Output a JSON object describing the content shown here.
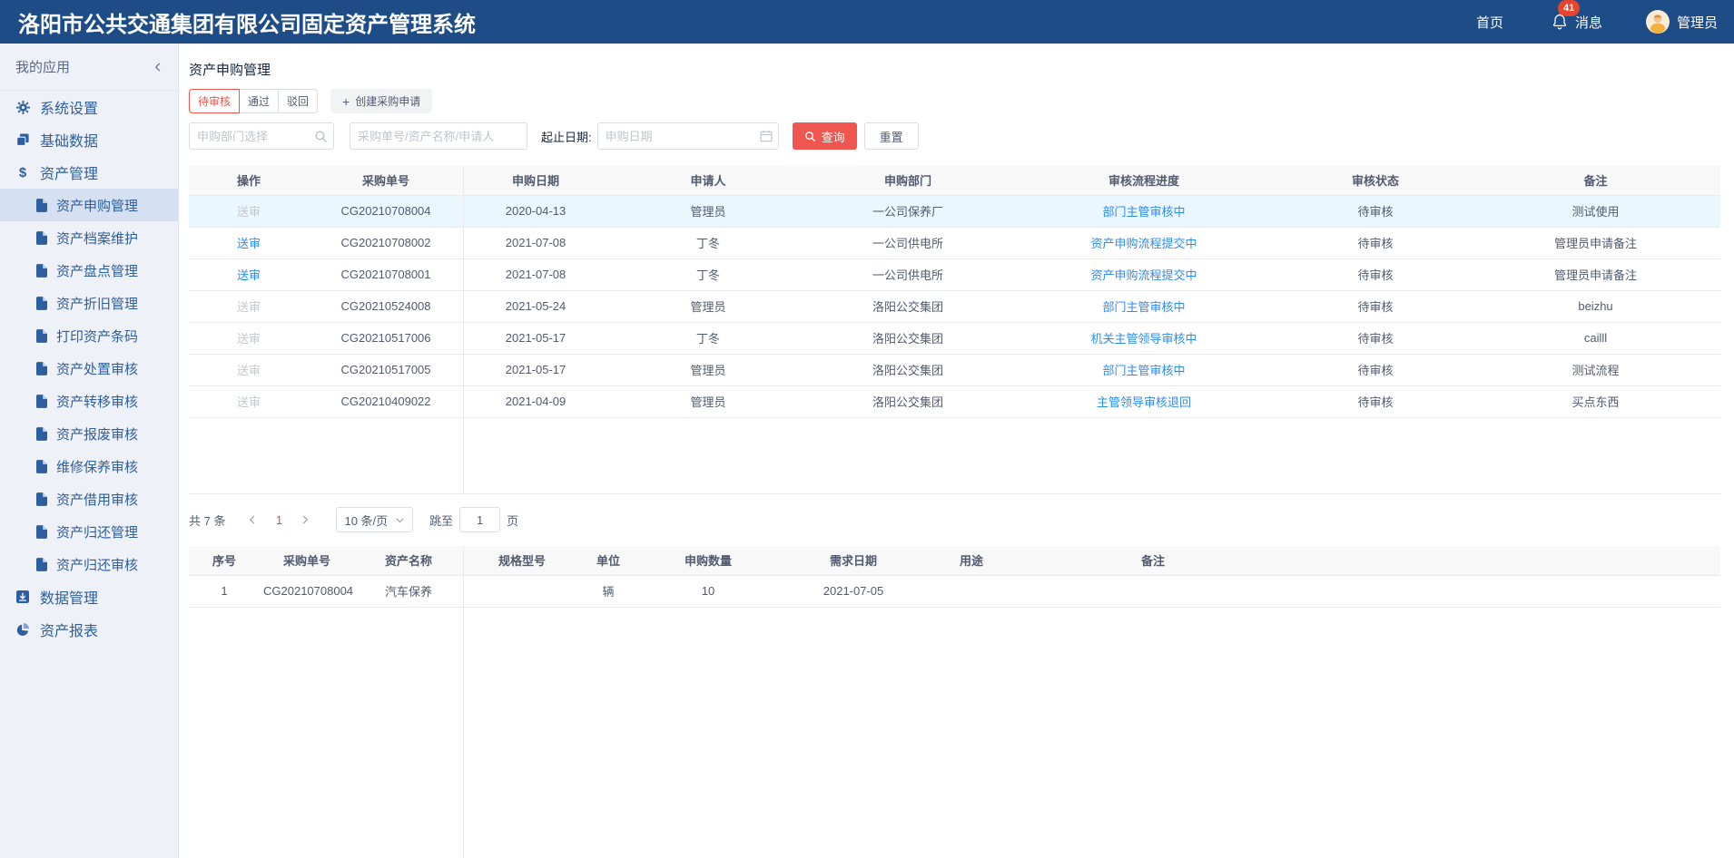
{
  "header": {
    "title": "洛阳市公共交通集团有限公司固定资产管理系统",
    "home": "首页",
    "badge": "41",
    "messages": "消息",
    "user": "管理员"
  },
  "sidebar": {
    "title": "我的应用",
    "items": [
      {
        "id": "system-settings",
        "label": "系统设置",
        "icon": "gear-icon",
        "level": 1,
        "active": false
      },
      {
        "id": "base-data",
        "label": "基础数据",
        "icon": "copy-icon",
        "level": 1,
        "active": false
      },
      {
        "id": "asset-management",
        "label": "资产管理",
        "icon": "dollar-icon",
        "level": 1,
        "active": false
      },
      {
        "id": "asset-purchase",
        "label": "资产申购管理",
        "icon": "file-icon",
        "level": 2,
        "active": true
      },
      {
        "id": "asset-archive",
        "label": "资产档案维护",
        "icon": "file-icon",
        "level": 2,
        "active": false
      },
      {
        "id": "asset-inventory",
        "label": "资产盘点管理",
        "icon": "file-icon",
        "level": 2,
        "active": false
      },
      {
        "id": "asset-depreciation",
        "label": "资产折旧管理",
        "icon": "file-icon",
        "level": 2,
        "active": false
      },
      {
        "id": "print-asset-barcode",
        "label": "打印资产条码",
        "icon": "file-icon",
        "level": 2,
        "active": false
      },
      {
        "id": "asset-disposal-audit",
        "label": "资产处置审核",
        "icon": "file-icon",
        "level": 2,
        "active": false
      },
      {
        "id": "asset-transfer-audit",
        "label": "资产转移审核",
        "icon": "file-icon",
        "level": 2,
        "active": false
      },
      {
        "id": "asset-scrap-audit",
        "label": "资产报废审核",
        "icon": "file-icon",
        "level": 2,
        "active": false
      },
      {
        "id": "maintenance-audit",
        "label": "维修保养审核",
        "icon": "file-icon",
        "level": 2,
        "active": false
      },
      {
        "id": "asset-borrow-audit",
        "label": "资产借用审核",
        "icon": "file-icon",
        "level": 2,
        "active": false
      },
      {
        "id": "asset-return-mgmt",
        "label": "资产归还管理",
        "icon": "file-icon",
        "level": 2,
        "active": false
      },
      {
        "id": "asset-return-audit",
        "label": "资产归还审核",
        "icon": "file-icon",
        "level": 2,
        "active": false
      },
      {
        "id": "data-management",
        "label": "数据管理",
        "icon": "databox-icon",
        "level": 1,
        "active": false
      },
      {
        "id": "asset-report",
        "label": "资产报表",
        "icon": "pie-icon",
        "level": 1,
        "active": false
      }
    ]
  },
  "main": {
    "page_title": "资产申购管理",
    "tabs": [
      {
        "id": "pending",
        "label": "待审核",
        "active": true
      },
      {
        "id": "approved",
        "label": "通过",
        "active": false
      },
      {
        "id": "rejected",
        "label": "驳回",
        "active": false
      }
    ],
    "create_button": "创建采购申请",
    "filters": {
      "dept_placeholder": "申购部门选择",
      "keyword_placeholder": "采购单号/资产名称/申请人",
      "date_label": "起止日期:",
      "date_placeholder": "申购日期",
      "query": "查询",
      "reset": "重置"
    },
    "orders_table": {
      "columns": [
        "操作",
        "采购单号",
        "申购日期",
        "申请人",
        "申购部门",
        "审核流程进度",
        "审核状态",
        "备注"
      ],
      "action_label": "送审",
      "rows": [
        {
          "order_no": "CG20210708004",
          "date": "2020-04-13",
          "applicant": "管理员",
          "dept": "一公司保养厂",
          "progress": "部门主管审核中",
          "status": "待审核",
          "remark": "测试使用",
          "action_enabled": false,
          "selected": true
        },
        {
          "order_no": "CG20210708002",
          "date": "2021-07-08",
          "applicant": "丁冬",
          "dept": "一公司供电所",
          "progress": "资产申购流程提交中",
          "status": "待审核",
          "remark": "管理员申请备注",
          "action_enabled": true,
          "selected": false
        },
        {
          "order_no": "CG20210708001",
          "date": "2021-07-08",
          "applicant": "丁冬",
          "dept": "一公司供电所",
          "progress": "资产申购流程提交中",
          "status": "待审核",
          "remark": "管理员申请备注",
          "action_enabled": true,
          "selected": false
        },
        {
          "order_no": "CG20210524008",
          "date": "2021-05-24",
          "applicant": "管理员",
          "dept": "洛阳公交集团",
          "progress": "部门主管审核中",
          "status": "待审核",
          "remark": "beizhu",
          "action_enabled": false,
          "selected": false
        },
        {
          "order_no": "CG20210517006",
          "date": "2021-05-17",
          "applicant": "丁冬",
          "dept": "洛阳公交集团",
          "progress": "机关主管领导审核中",
          "status": "待审核",
          "remark": "cailll",
          "action_enabled": false,
          "selected": false
        },
        {
          "order_no": "CG20210517005",
          "date": "2021-05-17",
          "applicant": "管理员",
          "dept": "洛阳公交集团",
          "progress": "部门主管审核中",
          "status": "待审核",
          "remark": "测试流程",
          "action_enabled": false,
          "selected": false
        },
        {
          "order_no": "CG20210409022",
          "date": "2021-04-09",
          "applicant": "管理员",
          "dept": "洛阳公交集团",
          "progress": "主管领导审核退回",
          "status": "待审核",
          "remark": "买点东西",
          "action_enabled": false,
          "selected": false
        }
      ]
    },
    "pagination": {
      "total": "共 7 条",
      "current_page": "1",
      "page_size": "10 条/页",
      "jump_label": "跳至",
      "jump_value": "1",
      "jump_suffix": "页"
    },
    "detail_table": {
      "columns": [
        "序号",
        "采购单号",
        "资产名称",
        "规格型号",
        "单位",
        "申购数量",
        "需求日期",
        "用途",
        "备注"
      ],
      "rows": [
        {
          "seq": "1",
          "order_no": "CG20210708004",
          "asset_name": "汽车保养",
          "spec": "",
          "unit": "辆",
          "quantity": "10",
          "need_date": "2021-07-05",
          "purpose": "",
          "remark": ""
        }
      ]
    }
  },
  "colors": {
    "header_bg": "#1d4c86",
    "accent_red": "#ee564f",
    "link_blue": "#2d8cf0",
    "badge_red": "#e8432d",
    "sidebar_active_bg": "#d5e0f2",
    "row_highlight": "#ebf7ff"
  }
}
